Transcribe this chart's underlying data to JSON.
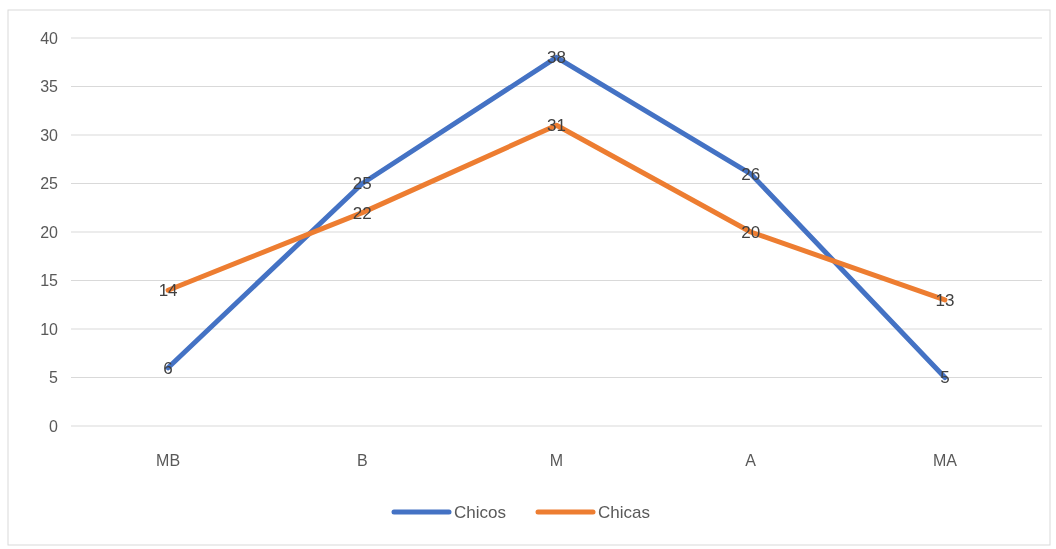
{
  "chart_data": {
    "type": "line",
    "categories": [
      "MB",
      "B",
      "M",
      "A",
      "MA"
    ],
    "series": [
      {
        "name": "Chicos",
        "color": "#4472c4",
        "values": [
          6,
          25,
          38,
          26,
          5
        ]
      },
      {
        "name": "Chicas",
        "color": "#ed7d31",
        "values": [
          14,
          22,
          31,
          20,
          13
        ]
      }
    ],
    "ylim": [
      0,
      40
    ],
    "yticks": [
      0,
      5,
      10,
      15,
      20,
      25,
      30,
      35,
      40
    ],
    "grid": "y",
    "legend": "bottom",
    "data_labels": true,
    "marker": "none",
    "line_style": "solid"
  }
}
